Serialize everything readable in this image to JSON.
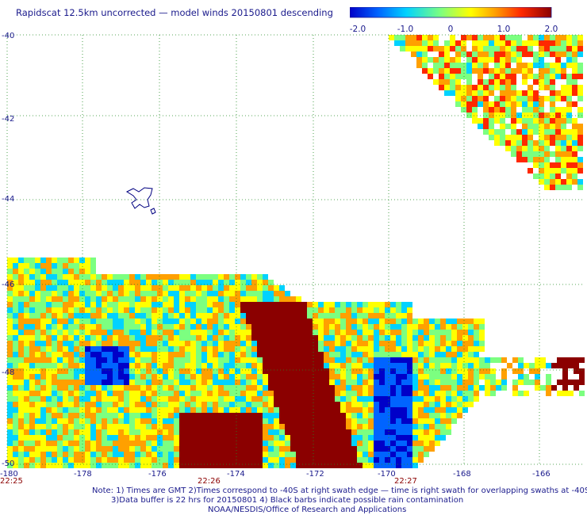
{
  "title": "Rapidscat 12.5km uncorrected — model winds 20150801 descending",
  "colorbar": {
    "labels": [
      "-2.0",
      "-1.0",
      "0",
      "1.0",
      "2.0"
    ],
    "colors": [
      "#0000c8",
      "#0064ff",
      "#00d2ff",
      "#7cff80",
      "#ffff00",
      "#ffa000",
      "#ff2800",
      "#8b0000"
    ]
  },
  "map": {
    "lat_labels": [
      "-40",
      "-42",
      "-44",
      "-46",
      "-48",
      "-50"
    ],
    "lon_labels": [
      "-180",
      "-178",
      "-176",
      "-174",
      "-172",
      "-170",
      "-168",
      "-166"
    ],
    "time_labels": [
      "22:25",
      "22:26",
      "22:27"
    ],
    "grid_color": "#228b22",
    "time_color": "#8b0000"
  },
  "notes": [
    "Note: 1) Times are GMT 2)Times correspond to -40S at right swath edge — time is right swath for overlapping swaths at -40S",
    "3)Data buffer is 22 hrs for 20150801 4) Black barbs indicate possible rain contamination",
    "NOAA/NESDIS/Office of Research and Applications"
  ]
}
